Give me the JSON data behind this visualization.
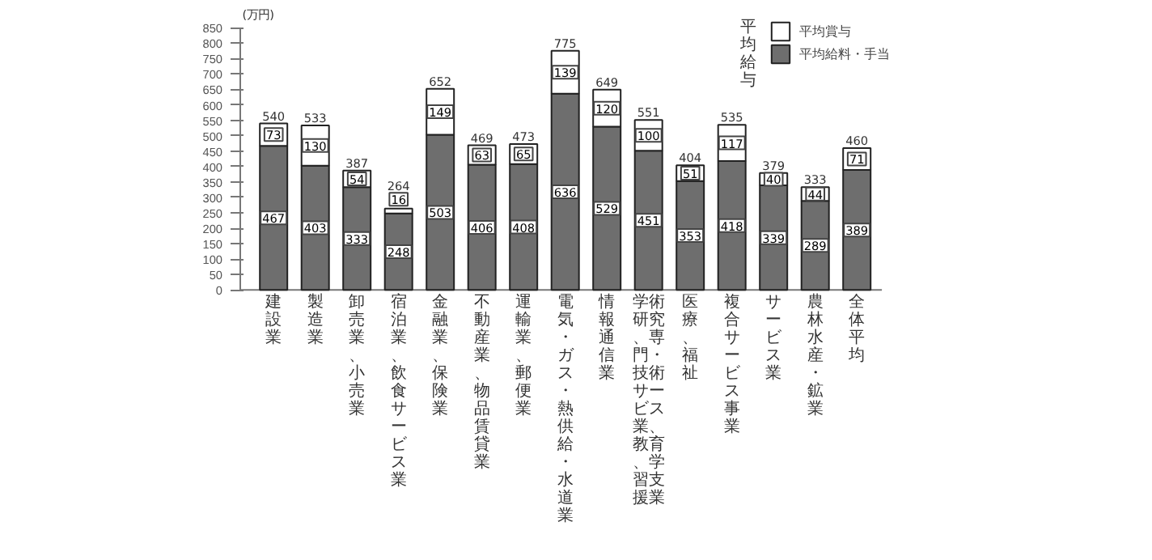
{
  "chart_data": {
    "type": "bar",
    "stacked": true,
    "ylabel": "(万円)",
    "categories": [
      "建設業",
      "製造業",
      "卸売業、小売業",
      "宿泊業、飲食サービス業",
      "金融業、保険業",
      "不動産業、物品賃貸業",
      "運輸業、郵便業",
      "電気・ガス・熱供給・水道業",
      "情報通信業",
      "学術研究、専門・技術サービス業、教育、学習支援業",
      "医療、福祉",
      "複合サービス事業",
      "サービス業",
      "農林水産・鉱業",
      "全体平均"
    ],
    "series": [
      {
        "name": "平均給料・手当",
        "color": "#6e6e6e",
        "values": [
          467,
          403,
          333,
          248,
          503,
          406,
          408,
          636,
          529,
          451,
          353,
          418,
          339,
          289,
          389
        ]
      },
      {
        "name": "平均賞与",
        "color": "#ffffff",
        "values": [
          73,
          130,
          54,
          16,
          149,
          63,
          65,
          139,
          120,
          100,
          51,
          117,
          40,
          44,
          71
        ]
      }
    ],
    "totals": [
      "540",
      "533",
      "387",
      "264",
      "652",
      "469",
      "473",
      "775",
      "649",
      "551",
      "404",
      "535",
      "379",
      "333",
      "460"
    ],
    "data_labels": true,
    "ylim": [
      0,
      850
    ],
    "yticks": [
      0,
      50,
      100,
      150,
      200,
      250,
      300,
      350,
      400,
      450,
      500,
      550,
      600,
      650,
      700,
      750,
      800,
      850
    ],
    "grid": false,
    "legend": "top right",
    "annotations": [
      "平均給与"
    ]
  }
}
